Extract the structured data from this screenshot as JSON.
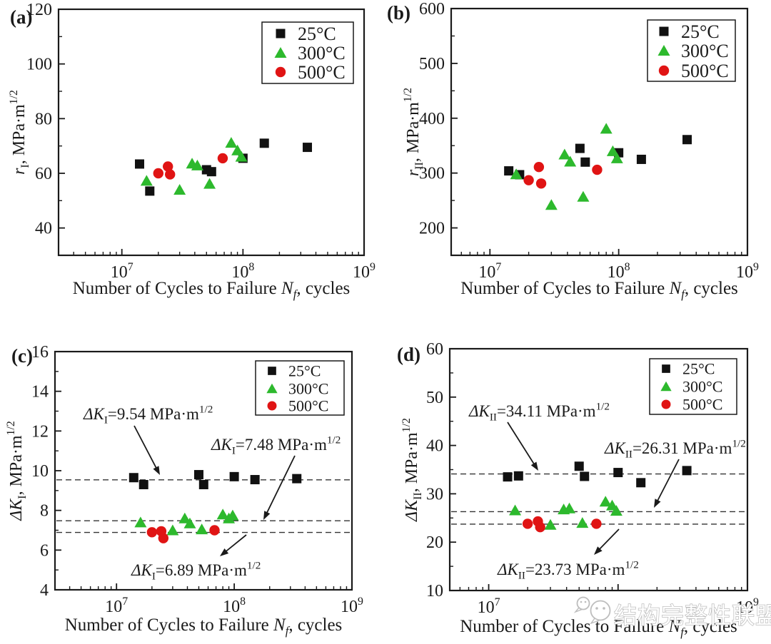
{
  "figure": {
    "background": "#ffffff",
    "axis_color": "#1a1a1a",
    "xlabel_text": "Number of Cycles to Failure Nf, cycles",
    "xlabel_parts": [
      {
        "t": "Number of Cycles to Failure "
      },
      {
        "t": "N",
        "i": 1
      },
      {
        "t": "f",
        "i": 1,
        "sub": 1
      },
      {
        "t": ", cycles"
      }
    ],
    "legend": {
      "position": "top-right",
      "entries": [
        {
          "label": "25°C",
          "marker": "square",
          "color": "#111111"
        },
        {
          "label": "300°C",
          "marker": "triangle",
          "color": "#2db92d"
        },
        {
          "label": "500°C",
          "marker": "circle",
          "color": "#e01414"
        }
      ]
    },
    "watermark": {
      "icon": "wechat-chat-bubbles-icon",
      "text": "结构完整性联盟",
      "color": "#bdbdbd"
    }
  },
  "chart_data": [
    {
      "id": "a",
      "type": "scatter",
      "panel_label": "(a)",
      "ylabel_text": "rI, MPa·m1/2",
      "ylabel_parts": [
        {
          "t": "r",
          "i": 1
        },
        {
          "t": "I",
          "sub": 1
        },
        {
          "t": ", MPa·m"
        },
        {
          "t": "1/2",
          "sup": 1
        }
      ],
      "xscale": "log",
      "xlim": [
        3000000,
        1000000000
      ],
      "xticks": [
        10000000,
        100000000,
        1000000000
      ],
      "ylim": [
        30,
        120
      ],
      "yticks": [
        40,
        60,
        80,
        100,
        120
      ],
      "yminor_step": 10,
      "grid": false,
      "series": [
        {
          "name": "25°C",
          "marker": "square",
          "color": "#111111",
          "points": [
            [
              14000000,
              63.4
            ],
            [
              17000000,
              53.5
            ],
            [
              50000000,
              61.3
            ],
            [
              55000000,
              60.6
            ],
            [
              100000000,
              65.5
            ],
            [
              150000000,
              71.0
            ],
            [
              340000000,
              69.5
            ]
          ]
        },
        {
          "name": "300°C",
          "marker": "triangle",
          "color": "#2db92d",
          "points": [
            [
              16000000,
              57.3
            ],
            [
              30000000,
              54.0
            ],
            [
              38000000,
              63.6
            ],
            [
              42000000,
              62.9
            ],
            [
              53000000,
              56.2
            ],
            [
              80000000,
              71.2
            ],
            [
              90000000,
              68.4
            ],
            [
              97000000,
              66.1
            ]
          ]
        },
        {
          "name": "500°C",
          "marker": "circle",
          "color": "#e01414",
          "points": [
            [
              20000000,
              60.0
            ],
            [
              24000000,
              62.5
            ],
            [
              25000000,
              59.6
            ],
            [
              68000000,
              65.5
            ]
          ]
        }
      ]
    },
    {
      "id": "b",
      "type": "scatter",
      "panel_label": "(b)",
      "ylabel_text": "rII, MPa·m1/2",
      "ylabel_parts": [
        {
          "t": "r",
          "i": 1
        },
        {
          "t": "II",
          "sub": 1
        },
        {
          "t": ", MPa·m"
        },
        {
          "t": "1/2",
          "sup": 1
        }
      ],
      "xscale": "log",
      "xlim": [
        5000000,
        1000000000
      ],
      "xticks": [
        10000000,
        100000000,
        1000000000
      ],
      "ylim": [
        150,
        600
      ],
      "yticks": [
        200,
        300,
        400,
        500,
        600
      ],
      "yminor_step": 50,
      "grid": false,
      "series": [
        {
          "name": "25°C",
          "marker": "square",
          "color": "#111111",
          "points": [
            [
              14000000,
              304
            ],
            [
              17000000,
              297
            ],
            [
              50000000,
              345
            ],
            [
              55000000,
              320
            ],
            [
              100000000,
              337
            ],
            [
              150000000,
              325
            ],
            [
              340000000,
              361
            ]
          ]
        },
        {
          "name": "300°C",
          "marker": "triangle",
          "color": "#2db92d",
          "points": [
            [
              16000000,
              298
            ],
            [
              30000000,
              242
            ],
            [
              38000000,
              334
            ],
            [
              42000000,
              321
            ],
            [
              53000000,
              257
            ],
            [
              80000000,
              381
            ],
            [
              90000000,
              340
            ],
            [
              97000000,
              327
            ]
          ]
        },
        {
          "name": "500°C",
          "marker": "circle",
          "color": "#e01414",
          "points": [
            [
              20000000,
              287
            ],
            [
              24000000,
              311
            ],
            [
              25000000,
              281
            ],
            [
              68000000,
              306
            ]
          ]
        }
      ]
    },
    {
      "id": "c",
      "type": "scatter",
      "panel_label": "(c)",
      "ylabel_text": "ΔKI, MPa·m1/2",
      "ylabel_parts": [
        {
          "t": "ΔK",
          "i": 1
        },
        {
          "t": "I",
          "sub": 1
        },
        {
          "t": ", MPa·m"
        },
        {
          "t": "1/2",
          "sup": 1
        }
      ],
      "xscale": "log",
      "xlim": [
        3000000,
        1000000000
      ],
      "xticks": [
        10000000,
        100000000,
        1000000000
      ],
      "ylim": [
        4,
        16
      ],
      "yticks": [
        4,
        6,
        8,
        10,
        12,
        14,
        16
      ],
      "yminor_step": 1,
      "grid": false,
      "ref_lines": [
        {
          "value": 9.54,
          "text": "ΔKI=9.54 MPa·m1/2",
          "label_parts": [
            {
              "t": "ΔK",
              "i": 1
            },
            {
              "t": "I",
              "sub": 1
            },
            {
              "t": "=9.54 MPa·m"
            },
            {
              "t": "1/2",
              "sup": 1
            }
          ]
        },
        {
          "value": 7.48,
          "text": "ΔKI=7.48 MPa·m1/2",
          "label_parts": [
            {
              "t": "ΔK",
              "i": 1
            },
            {
              "t": "I",
              "sub": 1
            },
            {
              "t": "=7.48 MPa·m"
            },
            {
              "t": "1/2",
              "sup": 1
            }
          ]
        },
        {
          "value": 6.89,
          "text": "ΔKI=6.89 MPa·m1/2",
          "label_parts": [
            {
              "t": "ΔK",
              "i": 1
            },
            {
              "t": "I",
              "sub": 1
            },
            {
              "t": "=6.89 MPa·m"
            },
            {
              "t": "1/2",
              "sup": 1
            }
          ]
        }
      ],
      "series": [
        {
          "name": "25°C",
          "marker": "square",
          "color": "#111111",
          "points": [
            [
              14000000,
              9.65
            ],
            [
              17000000,
              9.3
            ],
            [
              50000000,
              9.8
            ],
            [
              55000000,
              9.3
            ],
            [
              100000000,
              9.7
            ],
            [
              150000000,
              9.55
            ],
            [
              340000000,
              9.6
            ]
          ]
        },
        {
          "name": "300°C",
          "marker": "triangle",
          "color": "#2db92d",
          "points": [
            [
              16000000,
              7.4
            ],
            [
              30000000,
              7.0
            ],
            [
              38000000,
              7.6
            ],
            [
              42000000,
              7.35
            ],
            [
              53000000,
              7.05
            ],
            [
              80000000,
              7.8
            ],
            [
              90000000,
              7.6
            ],
            [
              97000000,
              7.75
            ]
          ]
        },
        {
          "name": "500°C",
          "marker": "circle",
          "color": "#e01414",
          "points": [
            [
              20000000,
              6.9
            ],
            [
              24000000,
              6.95
            ],
            [
              25000000,
              6.6
            ],
            [
              68000000,
              7.0
            ]
          ]
        }
      ]
    },
    {
      "id": "d",
      "type": "scatter",
      "panel_label": "(d)",
      "ylabel_text": "ΔKII, MPa·m1/2",
      "ylabel_parts": [
        {
          "t": "ΔK",
          "i": 1
        },
        {
          "t": "II",
          "sub": 1
        },
        {
          "t": ", MPa·m"
        },
        {
          "t": "1/2",
          "sup": 1
        }
      ],
      "xscale": "log",
      "xlim": [
        5000000,
        1000000000
      ],
      "xticks": [
        10000000,
        100000000,
        1000000000
      ],
      "ylim": [
        10,
        60
      ],
      "yticks": [
        10,
        20,
        30,
        40,
        50,
        60
      ],
      "yminor_step": 5,
      "grid": false,
      "ref_lines": [
        {
          "value": 34.11,
          "text": "ΔKII=34.11 MPa·m1/2",
          "label_parts": [
            {
              "t": "ΔK",
              "i": 1
            },
            {
              "t": "II",
              "sub": 1
            },
            {
              "t": "=34.11 MPa·m"
            },
            {
              "t": "1/2",
              "sup": 1
            }
          ]
        },
        {
          "value": 26.31,
          "text": "ΔKII=26.31 MPa·m1/2",
          "label_parts": [
            {
              "t": "ΔK",
              "i": 1
            },
            {
              "t": "II",
              "sub": 1
            },
            {
              "t": "=26.31 MPa·m"
            },
            {
              "t": "1/2",
              "sup": 1
            }
          ]
        },
        {
          "value": 23.73,
          "text": "ΔKII=23.73 MPa·m1/2",
          "label_parts": [
            {
              "t": "ΔK",
              "i": 1
            },
            {
              "t": "II",
              "sub": 1
            },
            {
              "t": "=23.73 MPa·m"
            },
            {
              "t": "1/2",
              "sup": 1
            }
          ]
        }
      ],
      "series": [
        {
          "name": "25°C",
          "marker": "square",
          "color": "#111111",
          "points": [
            [
              14000000,
              33.5
            ],
            [
              17000000,
              33.7
            ],
            [
              50000000,
              35.7
            ],
            [
              55000000,
              33.6
            ],
            [
              100000000,
              34.4
            ],
            [
              150000000,
              32.3
            ],
            [
              340000000,
              34.8
            ]
          ]
        },
        {
          "name": "300°C",
          "marker": "triangle",
          "color": "#2db92d",
          "points": [
            [
              16000000,
              26.6
            ],
            [
              30000000,
              23.6
            ],
            [
              38000000,
              26.8
            ],
            [
              42000000,
              27.0
            ],
            [
              53000000,
              24.0
            ],
            [
              80000000,
              28.4
            ],
            [
              90000000,
              27.6
            ],
            [
              97000000,
              26.5
            ]
          ]
        },
        {
          "name": "500°C",
          "marker": "circle",
          "color": "#e01414",
          "points": [
            [
              20000000,
              23.8
            ],
            [
              24000000,
              24.3
            ],
            [
              25000000,
              23.1
            ],
            [
              68000000,
              23.8
            ]
          ]
        }
      ]
    }
  ]
}
